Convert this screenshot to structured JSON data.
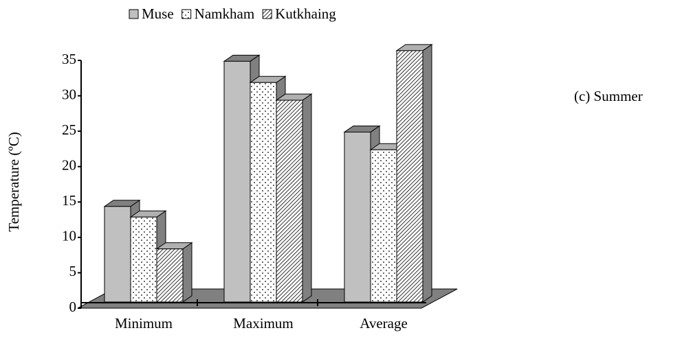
{
  "chart_data": {
    "type": "bar3d",
    "y_label": "Temperature (ºC)",
    "annotation": "(c) Summer",
    "categories": [
      "Minimum",
      "Maximum",
      "Average"
    ],
    "series": [
      {
        "name": "Muse",
        "color": "#c0c0c0",
        "pattern": "solid",
        "values": [
          13.5,
          34,
          24
        ]
      },
      {
        "name": "Namkham",
        "color": "#ffffff",
        "pattern": "dots",
        "values": [
          12,
          31,
          21.5
        ]
      },
      {
        "name": "Kutkhaing",
        "color": "#ffffff",
        "pattern": "hatch",
        "values": [
          7.5,
          28.5,
          35.5
        ]
      }
    ],
    "ylim": [
      0,
      35
    ],
    "yticks": [
      0,
      5,
      10,
      15,
      20,
      25,
      30,
      35
    ],
    "legend": "top"
  }
}
